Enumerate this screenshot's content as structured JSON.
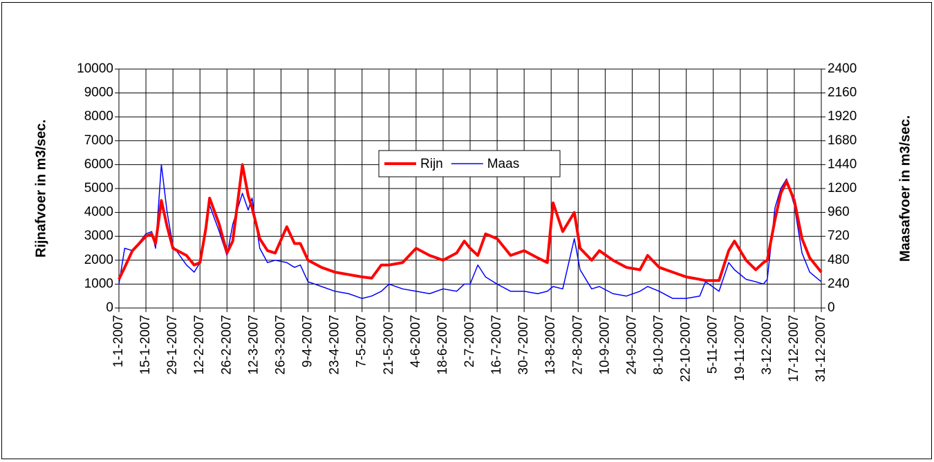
{
  "chart_data": {
    "type": "line",
    "ylabel": "Rijnafvoer in m3/sec.",
    "y2label": "Maasafvoer in m3/sec.",
    "x": [
      "1-1-2007",
      "4-1-2007",
      "8-1-2007",
      "15-1-2007",
      "18-1-2007",
      "20-1-2007",
      "23-1-2007",
      "26-1-2007",
      "29-1-2007",
      "5-2-2007",
      "9-2-2007",
      "12-2-2007",
      "15-2-2007",
      "17-2-2007",
      "22-2-2007",
      "26-2-2007",
      "1-3-2007",
      "6-3-2007",
      "9-3-2007",
      "11-3-2007",
      "15-3-2007",
      "19-3-2007",
      "23-3-2007",
      "29-3-2007",
      "2-4-2007",
      "5-4-2007",
      "9-4-2007",
      "16-4-2007",
      "23-4-2007",
      "30-4-2007",
      "7-5-2007",
      "12-5-2007",
      "17-5-2007",
      "21-5-2007",
      "28-5-2007",
      "4-6-2007",
      "11-6-2007",
      "18-6-2007",
      "25-6-2007",
      "29-6-2007",
      "2-7-2007",
      "6-7-2007",
      "10-7-2007",
      "16-7-2007",
      "23-7-2007",
      "30-7-2007",
      "6-8-2007",
      "11-8-2007",
      "14-8-2007",
      "19-8-2007",
      "25-8-2007",
      "28-8-2007",
      "3-9-2007",
      "7-9-2007",
      "14-9-2007",
      "21-9-2007",
      "28-9-2007",
      "2-10-2007",
      "8-10-2007",
      "15-10-2007",
      "22-10-2007",
      "29-10-2007",
      "1-11-2007",
      "8-11-2007",
      "13-11-2007",
      "16-11-2007",
      "22-11-2007",
      "27-11-2007",
      "1-12-2007",
      "3-12-2007",
      "7-12-2007",
      "10-12-2007",
      "13-12-2007",
      "17-12-2007",
      "21-12-2007",
      "25-12-2007",
      "28-12-2007",
      "31-12-2007"
    ],
    "series": [
      {
        "name": "Rijn",
        "color": "#ff0000",
        "line_width": 4,
        "axis": "y",
        "values": [
          1200,
          1700,
          2400,
          3000,
          3100,
          2700,
          4500,
          3400,
          2500,
          2200,
          1800,
          1900,
          3300,
          4600,
          3500,
          2300,
          2800,
          6000,
          4700,
          4200,
          2900,
          2400,
          2300,
          3400,
          2700,
          2700,
          2000,
          1700,
          1500,
          1400,
          1300,
          1250,
          1800,
          1800,
          1900,
          2500,
          2200,
          2000,
          2300,
          2800,
          2500,
          2200,
          3100,
          2900,
          2200,
          2400,
          2100,
          1900,
          4400,
          3200,
          4000,
          2500,
          2000,
          2400,
          2000,
          1700,
          1600,
          2200,
          1700,
          1500,
          1300,
          1200,
          1150,
          1150,
          2400,
          2800,
          2000,
          1600,
          1900,
          2000,
          3700,
          4800,
          5300,
          4500,
          2900,
          2100,
          1800,
          1500
        ]
      },
      {
        "name": "Maas",
        "color": "#0000ff",
        "line_width": 1.5,
        "axis": "y2",
        "values": [
          240,
          600,
          576,
          744,
          768,
          600,
          1440,
          960,
          624,
          432,
          360,
          456,
          816,
          1032,
          768,
          528,
          840,
          1152,
          984,
          1104,
          600,
          456,
          480,
          456,
          408,
          432,
          264,
          216,
          168,
          144,
          96,
          120,
          168,
          240,
          192,
          168,
          144,
          192,
          168,
          240,
          240,
          432,
          312,
          240,
          168,
          168,
          144,
          168,
          216,
          192,
          696,
          384,
          192,
          216,
          144,
          120,
          168,
          216,
          168,
          96,
          96,
          120,
          264,
          168,
          456,
          384,
          288,
          264,
          240,
          288,
          1008,
          1200,
          1296,
          1032,
          552,
          360,
          312,
          264
        ]
      }
    ],
    "xticks": [
      "1-1-2007",
      "15-1-2007",
      "29-1-2007",
      "12-2-2007",
      "26-2-2007",
      "12-3-2007",
      "26-3-2007",
      "9-4-2007",
      "23-4-2007",
      "7-5-2007",
      "21-5-2007",
      "4-6-2007",
      "18-6-2007",
      "2-7-2007",
      "16-7-2007",
      "30-7-2007",
      "13-8-2007",
      "27-8-2007",
      "10-9-2007",
      "24-9-2007",
      "8-10-2007",
      "22-10-2007",
      "5-11-2007",
      "19-11-2007",
      "3-12-2007",
      "17-12-2007",
      "31-12-2007"
    ],
    "ylim": [
      0,
      10000
    ],
    "yticks": [
      0,
      1000,
      2000,
      3000,
      4000,
      5000,
      6000,
      7000,
      8000,
      9000,
      10000
    ],
    "y2lim": [
      0,
      2400
    ],
    "y2ticks": [
      0,
      240,
      480,
      720,
      960,
      1200,
      1440,
      1680,
      1920,
      2160,
      2400
    ],
    "grid": true
  }
}
